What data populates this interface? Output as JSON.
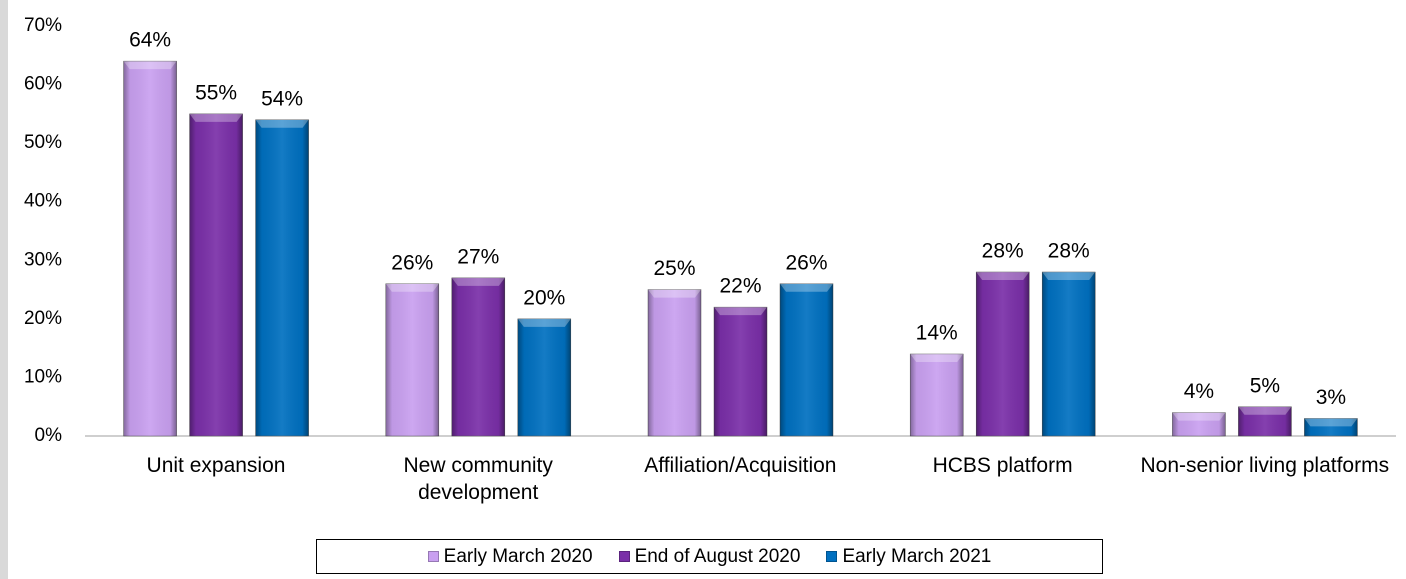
{
  "chart_data": {
    "type": "bar",
    "categories": [
      "Unit expansion",
      "New community development",
      "Affiliation/Acquisition",
      "HCBS platform",
      "Non-senior living platforms"
    ],
    "series": [
      {
        "name": "Early March 2020",
        "color": "#c9a0f0",
        "values": [
          64,
          26,
          25,
          14,
          4
        ],
        "value_labels": [
          "64%",
          "26%",
          "25%",
          "14%",
          "4%"
        ]
      },
      {
        "name": "End of August 2020",
        "color": "#7a2fa8",
        "values": [
          55,
          27,
          22,
          28,
          5
        ],
        "value_labels": [
          "55%",
          "27%",
          "22%",
          "28%",
          "5%"
        ]
      },
      {
        "name": "Early March 2021",
        "color": "#0070c0",
        "values": [
          54,
          20,
          26,
          28,
          3
        ],
        "value_labels": [
          "54%",
          "20%",
          "26%",
          "28%",
          "3%"
        ]
      }
    ],
    "ylim": [
      0,
      70
    ],
    "yticks": [
      {
        "value": 0,
        "label": "0%"
      },
      {
        "value": 10,
        "label": "10%"
      },
      {
        "value": 20,
        "label": "20%"
      },
      {
        "value": 30,
        "label": "30%"
      },
      {
        "value": 40,
        "label": "40%"
      },
      {
        "value": 50,
        "label": "50%"
      },
      {
        "value": 60,
        "label": "60%"
      },
      {
        "value": 70,
        "label": "70%"
      }
    ],
    "grid": false,
    "legend": "bottom"
  }
}
